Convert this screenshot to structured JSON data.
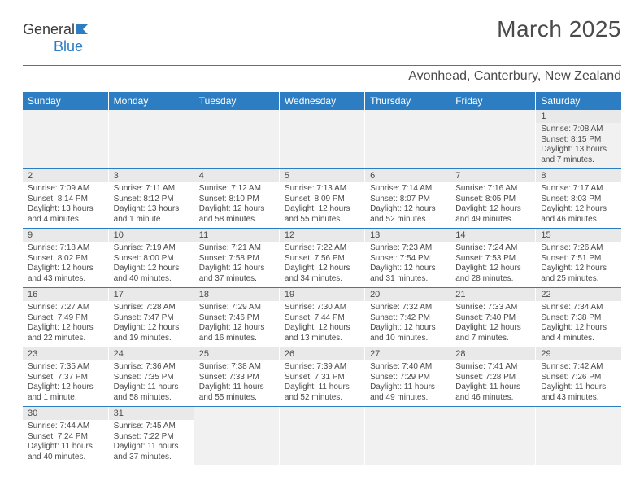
{
  "logo": {
    "text_general": "General",
    "text_blue": "Blue"
  },
  "title": "March 2025",
  "location": "Avonhead, Canterbury, New Zealand",
  "colors": {
    "accent": "#2d7dc3",
    "header_bg": "#2d7dc3",
    "daynum_bg": "#e9e9e9",
    "empty_bg": "#f1f1f1",
    "text": "#4a4a4a"
  },
  "weekdays": [
    "Sunday",
    "Monday",
    "Tuesday",
    "Wednesday",
    "Thursday",
    "Friday",
    "Saturday"
  ],
  "weeks": [
    [
      null,
      null,
      null,
      null,
      null,
      null,
      {
        "n": "1",
        "sr": "7:08 AM",
        "ss": "8:15 PM",
        "dl": "13 hours and 7 minutes."
      }
    ],
    [
      {
        "n": "2",
        "sr": "7:09 AM",
        "ss": "8:14 PM",
        "dl": "13 hours and 4 minutes."
      },
      {
        "n": "3",
        "sr": "7:11 AM",
        "ss": "8:12 PM",
        "dl": "13 hours and 1 minute."
      },
      {
        "n": "4",
        "sr": "7:12 AM",
        "ss": "8:10 PM",
        "dl": "12 hours and 58 minutes."
      },
      {
        "n": "5",
        "sr": "7:13 AM",
        "ss": "8:09 PM",
        "dl": "12 hours and 55 minutes."
      },
      {
        "n": "6",
        "sr": "7:14 AM",
        "ss": "8:07 PM",
        "dl": "12 hours and 52 minutes."
      },
      {
        "n": "7",
        "sr": "7:16 AM",
        "ss": "8:05 PM",
        "dl": "12 hours and 49 minutes."
      },
      {
        "n": "8",
        "sr": "7:17 AM",
        "ss": "8:03 PM",
        "dl": "12 hours and 46 minutes."
      }
    ],
    [
      {
        "n": "9",
        "sr": "7:18 AM",
        "ss": "8:02 PM",
        "dl": "12 hours and 43 minutes."
      },
      {
        "n": "10",
        "sr": "7:19 AM",
        "ss": "8:00 PM",
        "dl": "12 hours and 40 minutes."
      },
      {
        "n": "11",
        "sr": "7:21 AM",
        "ss": "7:58 PM",
        "dl": "12 hours and 37 minutes."
      },
      {
        "n": "12",
        "sr": "7:22 AM",
        "ss": "7:56 PM",
        "dl": "12 hours and 34 minutes."
      },
      {
        "n": "13",
        "sr": "7:23 AM",
        "ss": "7:54 PM",
        "dl": "12 hours and 31 minutes."
      },
      {
        "n": "14",
        "sr": "7:24 AM",
        "ss": "7:53 PM",
        "dl": "12 hours and 28 minutes."
      },
      {
        "n": "15",
        "sr": "7:26 AM",
        "ss": "7:51 PM",
        "dl": "12 hours and 25 minutes."
      }
    ],
    [
      {
        "n": "16",
        "sr": "7:27 AM",
        "ss": "7:49 PM",
        "dl": "12 hours and 22 minutes."
      },
      {
        "n": "17",
        "sr": "7:28 AM",
        "ss": "7:47 PM",
        "dl": "12 hours and 19 minutes."
      },
      {
        "n": "18",
        "sr": "7:29 AM",
        "ss": "7:46 PM",
        "dl": "12 hours and 16 minutes."
      },
      {
        "n": "19",
        "sr": "7:30 AM",
        "ss": "7:44 PM",
        "dl": "12 hours and 13 minutes."
      },
      {
        "n": "20",
        "sr": "7:32 AM",
        "ss": "7:42 PM",
        "dl": "12 hours and 10 minutes."
      },
      {
        "n": "21",
        "sr": "7:33 AM",
        "ss": "7:40 PM",
        "dl": "12 hours and 7 minutes."
      },
      {
        "n": "22",
        "sr": "7:34 AM",
        "ss": "7:38 PM",
        "dl": "12 hours and 4 minutes."
      }
    ],
    [
      {
        "n": "23",
        "sr": "7:35 AM",
        "ss": "7:37 PM",
        "dl": "12 hours and 1 minute."
      },
      {
        "n": "24",
        "sr": "7:36 AM",
        "ss": "7:35 PM",
        "dl": "11 hours and 58 minutes."
      },
      {
        "n": "25",
        "sr": "7:38 AM",
        "ss": "7:33 PM",
        "dl": "11 hours and 55 minutes."
      },
      {
        "n": "26",
        "sr": "7:39 AM",
        "ss": "7:31 PM",
        "dl": "11 hours and 52 minutes."
      },
      {
        "n": "27",
        "sr": "7:40 AM",
        "ss": "7:29 PM",
        "dl": "11 hours and 49 minutes."
      },
      {
        "n": "28",
        "sr": "7:41 AM",
        "ss": "7:28 PM",
        "dl": "11 hours and 46 minutes."
      },
      {
        "n": "29",
        "sr": "7:42 AM",
        "ss": "7:26 PM",
        "dl": "11 hours and 43 minutes."
      }
    ],
    [
      {
        "n": "30",
        "sr": "7:44 AM",
        "ss": "7:24 PM",
        "dl": "11 hours and 40 minutes."
      },
      {
        "n": "31",
        "sr": "7:45 AM",
        "ss": "7:22 PM",
        "dl": "11 hours and 37 minutes."
      },
      null,
      null,
      null,
      null,
      null
    ]
  ],
  "labels": {
    "sunrise": "Sunrise:",
    "sunset": "Sunset:",
    "daylight": "Daylight:"
  }
}
